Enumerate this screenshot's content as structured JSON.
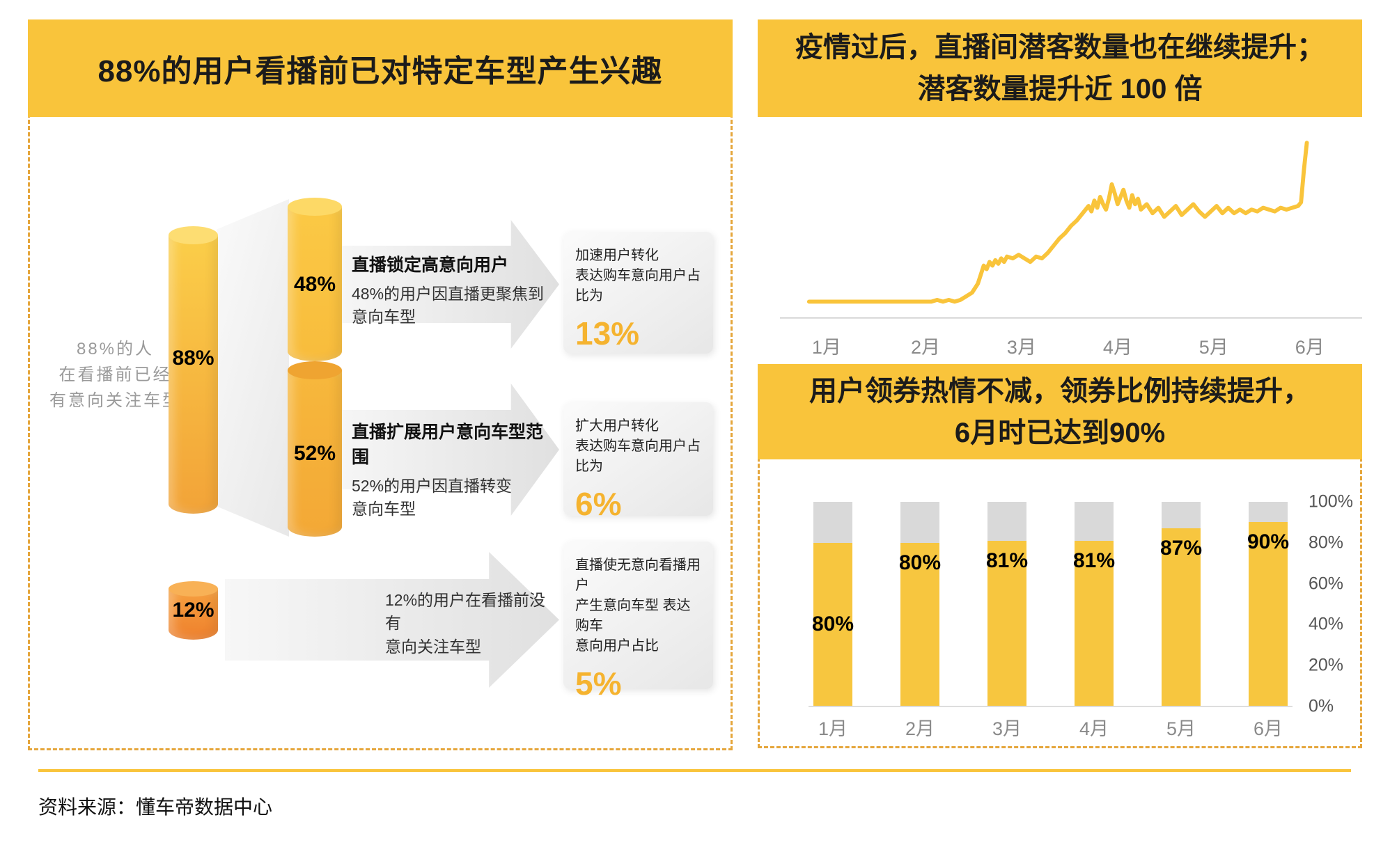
{
  "colors": {
    "accent_yellow": "#F9C43B",
    "bar_yellow": "#F7C63F",
    "cap_gray": "#D9D9D9",
    "value_orange": "#F5B32F",
    "dashed_border": "#E5A63C"
  },
  "left_panel": {
    "title": "88%的用户看播前已对特定车型产生兴趣",
    "side_label_lines": [
      "88%的人",
      "在看播前已经",
      "有意向关注车型"
    ],
    "cylinders": {
      "main": {
        "label": "88%",
        "value": 88
      },
      "focus": {
        "label": "48%",
        "value": 48
      },
      "shift": {
        "label": "52%",
        "value": 52
      },
      "new_intent": {
        "label": "12%",
        "value": 12
      }
    },
    "rows": [
      {
        "heading": "直播锁定高意向用户",
        "lines": [
          "48%的用户因直播更聚焦到",
          "意向车型"
        ],
        "result_lines": [
          "加速用户转化",
          "表达购车意向用户占比为"
        ],
        "result_value": "13%"
      },
      {
        "heading": "直播扩展用户意向车型范围",
        "lines": [
          "52%的用户因直播转变",
          "意向车型"
        ],
        "result_lines": [
          "扩大用户转化",
          "表达购车意向用户占比为"
        ],
        "result_value": "6%"
      },
      {
        "heading": "",
        "lines": [
          "12%的用户在看播前没有",
          "意向关注车型"
        ],
        "result_lines": [
          "直播使无意向看播用户",
          "产生意向车型 表达购车",
          "意向用户占比"
        ],
        "result_value": "5%"
      }
    ]
  },
  "top_right": {
    "title_lines": [
      "疫情过后，直播间潜客数量也在继续提升；",
      "潜客数量提升近 100 倍"
    ]
  },
  "bottom_right": {
    "title_lines": [
      "用户领券热情不减，领券比例持续提升，",
      "6月时已达到90%"
    ]
  },
  "chart_data": [
    {
      "id": "potential-customers-trend",
      "type": "line",
      "title": "疫情过后，直播间潜客数量也在继续提升；潜客数量提升近 100 倍",
      "x_labels": [
        "1月",
        "2月",
        "3月",
        "4月",
        "5月",
        "6月"
      ],
      "x_label_positions": [
        8,
        25,
        41.5,
        58,
        74.5,
        91
      ],
      "ylim": [
        0,
        100
      ],
      "line_color": "#F9C43B",
      "grid": false,
      "points": [
        [
          5,
          9
        ],
        [
          8,
          9
        ],
        [
          11,
          9
        ],
        [
          14,
          9
        ],
        [
          17,
          9
        ],
        [
          20,
          9
        ],
        [
          22,
          9
        ],
        [
          24,
          9
        ],
        [
          26,
          9
        ],
        [
          27,
          10
        ],
        [
          28,
          9
        ],
        [
          29,
          10
        ],
        [
          30,
          9
        ],
        [
          31,
          10
        ],
        [
          32,
          12
        ],
        [
          33,
          14
        ],
        [
          34,
          19
        ],
        [
          34.5,
          24
        ],
        [
          35,
          29
        ],
        [
          35.5,
          27
        ],
        [
          36,
          31
        ],
        [
          36.5,
          29
        ],
        [
          37,
          32
        ],
        [
          37.5,
          30
        ],
        [
          38,
          33
        ],
        [
          38.5,
          31
        ],
        [
          39,
          34
        ],
        [
          40,
          33
        ],
        [
          41,
          35
        ],
        [
          42,
          33
        ],
        [
          43,
          31
        ],
        [
          44,
          34
        ],
        [
          45,
          33
        ],
        [
          46,
          36
        ],
        [
          47,
          40
        ],
        [
          48,
          44
        ],
        [
          49,
          47
        ],
        [
          50,
          51
        ],
        [
          51,
          54
        ],
        [
          52,
          58
        ],
        [
          53,
          62
        ],
        [
          53.5,
          59
        ],
        [
          54,
          65
        ],
        [
          54.5,
          61
        ],
        [
          55,
          67
        ],
        [
          55.5,
          63
        ],
        [
          56,
          60
        ],
        [
          56.5,
          66
        ],
        [
          57,
          74
        ],
        [
          57.5,
          69
        ],
        [
          58,
          63
        ],
        [
          58.5,
          67
        ],
        [
          59,
          71
        ],
        [
          59.5,
          65
        ],
        [
          60,
          61
        ],
        [
          60.5,
          68
        ],
        [
          61,
          63
        ],
        [
          61.5,
          66
        ],
        [
          62,
          60
        ],
        [
          63,
          63
        ],
        [
          64,
          58
        ],
        [
          65,
          61
        ],
        [
          66,
          56
        ],
        [
          67,
          59
        ],
        [
          68,
          62
        ],
        [
          69,
          57
        ],
        [
          70,
          60
        ],
        [
          71,
          63
        ],
        [
          72,
          59
        ],
        [
          73,
          56
        ],
        [
          74,
          59
        ],
        [
          75,
          62
        ],
        [
          76,
          58
        ],
        [
          77,
          61
        ],
        [
          78,
          58
        ],
        [
          79,
          60
        ],
        [
          80,
          58
        ],
        [
          81,
          60
        ],
        [
          82,
          59
        ],
        [
          83,
          61
        ],
        [
          84,
          60
        ],
        [
          85,
          59
        ],
        [
          86,
          61
        ],
        [
          87,
          60
        ],
        [
          88,
          61
        ],
        [
          89,
          62
        ],
        [
          89.5,
          64
        ],
        [
          90,
          82
        ],
        [
          90.5,
          97
        ]
      ]
    },
    {
      "id": "coupon-claim-rate",
      "type": "bar",
      "title": "用户领券热情不减，领券比例持续提升，6月时已达到90%",
      "categories": [
        "1月",
        "2月",
        "3月",
        "4月",
        "5月",
        "6月"
      ],
      "values": [
        80,
        80,
        81,
        81,
        87,
        90
      ],
      "value_labels": [
        "80%",
        "80%",
        "81%",
        "81%",
        "87%",
        "90%"
      ],
      "label_positions": [
        "middle",
        "top",
        "top",
        "top",
        "top",
        "top"
      ],
      "y_ticks": [
        "100%",
        "80%",
        "60%",
        "40%",
        "20%",
        "0%"
      ],
      "ylim": [
        0,
        100
      ],
      "bar_color": "#F7C63F",
      "cap_color": "#D9D9D9",
      "legend": "none"
    }
  ],
  "footer": {
    "source": "资料来源：懂车帝数据中心"
  }
}
